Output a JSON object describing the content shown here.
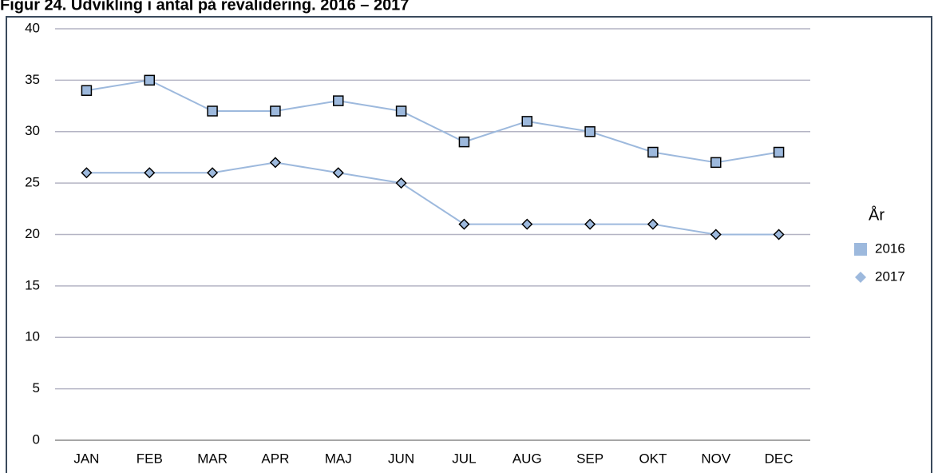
{
  "chart_data": {
    "type": "line",
    "title": "Figur 24. Udvikling i antal på revalidering. 2016 – 2017",
    "categories": [
      "JAN",
      "FEB",
      "MAR",
      "APR",
      "MAJ",
      "JUN",
      "JUL",
      "AUG",
      "SEP",
      "OKT",
      "NOV",
      "DEC"
    ],
    "series": [
      {
        "name": "2016",
        "color": "#9db9dd",
        "marker": "square",
        "values": [
          34,
          35,
          32,
          32,
          33,
          32,
          29,
          31,
          30,
          28,
          27,
          28
        ]
      },
      {
        "name": "2017",
        "color": "#9db9dd",
        "marker": "diamond",
        "values": [
          26,
          26,
          26,
          27,
          26,
          25,
          21,
          21,
          21,
          21,
          20,
          20
        ]
      }
    ],
    "legend_title": "År",
    "legend": "right",
    "ylim": [
      0,
      40
    ],
    "yticks": [
      0,
      5,
      10,
      15,
      20,
      25,
      30,
      35,
      40
    ],
    "grid": true
  }
}
